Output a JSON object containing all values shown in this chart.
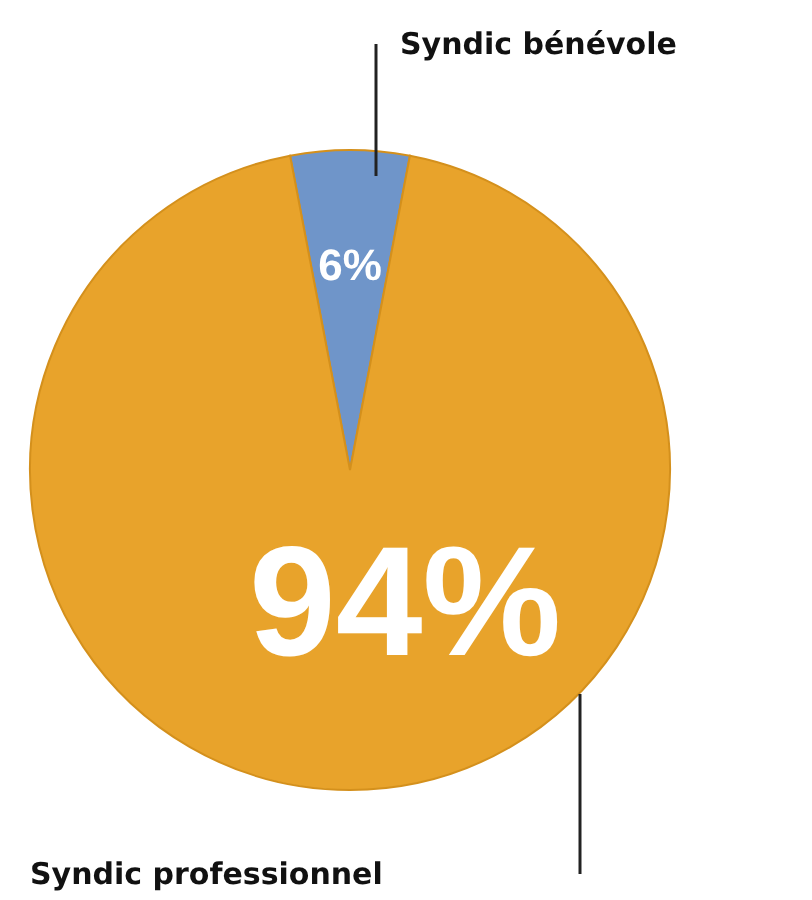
{
  "chart_data": {
    "type": "pie",
    "categories": [
      "Syndic bénévole",
      "Syndic professionnel"
    ],
    "values": [
      6,
      94
    ],
    "colors": [
      "#6f95c9",
      "#e8a32b"
    ],
    "data_labels": true,
    "value_labels": [
      "6%",
      "94%"
    ]
  }
}
